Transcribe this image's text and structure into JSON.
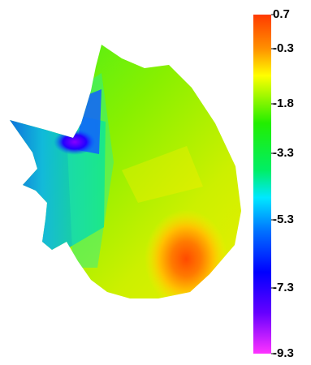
{
  "colorbar": {
    "labels": [
      "0.7",
      "-0.3",
      "-1.8",
      "-3.3",
      "-5.3",
      "-7.3",
      "-9.3"
    ],
    "colors": {
      "top": "#ff3a00",
      "orange": "#ff9000",
      "yellow": "#ffff00",
      "green": "#22ee00",
      "cyan": "#00e8ff",
      "blue": "#0000ff",
      "bottom": "#ff33ff"
    }
  }
}
